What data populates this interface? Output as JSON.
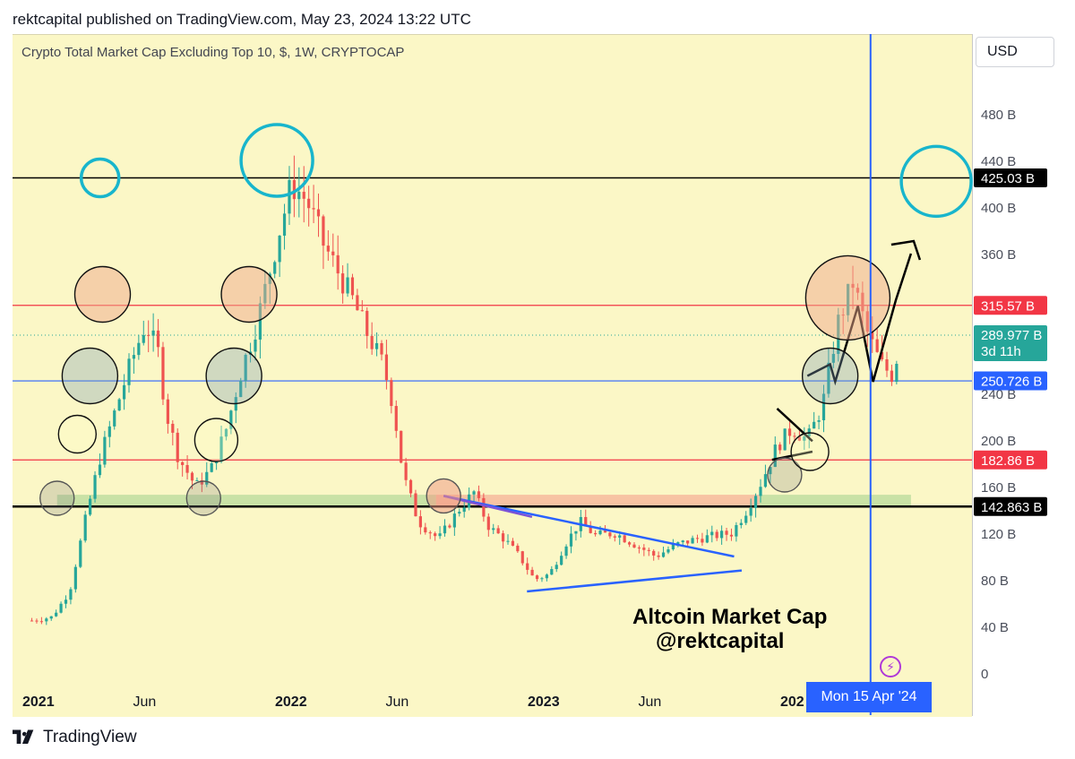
{
  "header": {
    "text": "rektcapital published on TradingView.com, May 23, 2024 13:22 UTC"
  },
  "symbol": "Crypto Total Market Cap Excluding Top 10, $, 1W, CRYPTOCAP",
  "currency": "USD",
  "footer": {
    "brand": "TradingView"
  },
  "annotation": {
    "line1": "Altcoin Market Cap",
    "line2": "@rektcapital"
  },
  "crosshair_date": "Mon 15 Apr '24",
  "chart_data": {
    "type": "candlestick",
    "title": "Crypto Total Market Cap Excluding Top 10, $, 1W, CRYPTOCAP",
    "y_axis": {
      "ticks": [
        {
          "value": 0,
          "label": "0"
        },
        {
          "value": 40,
          "label": "40 B"
        },
        {
          "value": 80,
          "label": "80 B"
        },
        {
          "value": 120,
          "label": "120 B"
        },
        {
          "value": 160,
          "label": "160 B"
        },
        {
          "value": 200,
          "label": "200 B"
        },
        {
          "value": 240,
          "label": "240 B"
        },
        {
          "value": 360,
          "label": "360 B"
        },
        {
          "value": 400,
          "label": "400 B"
        },
        {
          "value": 440,
          "label": "440 B"
        },
        {
          "value": 480,
          "label": "480 B"
        }
      ],
      "range": [
        0,
        520
      ]
    },
    "x_axis": {
      "labels": [
        {
          "text": "2021",
          "t": 2021.0,
          "bold": true
        },
        {
          "text": "Jun",
          "t": 2021.42,
          "bold": false
        },
        {
          "text": "2022",
          "t": 2022.0,
          "bold": true
        },
        {
          "text": "Jun",
          "t": 2022.42,
          "bold": false
        },
        {
          "text": "2023",
          "t": 2023.0,
          "bold": true
        },
        {
          "text": "Jun",
          "t": 2023.42,
          "bold": false
        },
        {
          "text": "202",
          "t": 2024.0,
          "bold": true
        }
      ]
    },
    "price_labels": [
      {
        "value": 425.03,
        "label": "425.03 B",
        "color": "#000000"
      },
      {
        "value": 315.57,
        "label": "315.57 B",
        "color": "#f23645"
      },
      {
        "value": 289.977,
        "label": "289.977 B",
        "sub": "3d 11h",
        "color": "#26a69a"
      },
      {
        "value": 250.726,
        "label": "250.726 B",
        "color": "#2962ff"
      },
      {
        "value": 182.86,
        "label": "182.86 B",
        "color": "#f23645"
      },
      {
        "value": 142.863,
        "label": "142.863 B",
        "color": "#000000"
      }
    ],
    "horizontal_lines": [
      {
        "value": 425.03,
        "color": "#000000"
      },
      {
        "value": 315.57,
        "color": "#f23645"
      },
      {
        "value": 250.726,
        "color": "#2962ff"
      },
      {
        "value": 182.86,
        "color": "#f23645"
      },
      {
        "value": 142.863,
        "color": "#000000"
      }
    ],
    "vertical_line_t": 2024.29,
    "colors": {
      "up": "#26a69a",
      "down": "#ef5350",
      "background": "#fbf7c6"
    },
    "price_path": [
      [
        2020.97,
        45
      ],
      [
        2021.05,
        48
      ],
      [
        2021.12,
        70
      ],
      [
        2021.18,
        130
      ],
      [
        2021.24,
        185
      ],
      [
        2021.3,
        225
      ],
      [
        2021.36,
        265
      ],
      [
        2021.42,
        300
      ],
      [
        2021.47,
        275
      ],
      [
        2021.5,
        225
      ],
      [
        2021.55,
        185
      ],
      [
        2021.62,
        160
      ],
      [
        2021.68,
        175
      ],
      [
        2021.74,
        210
      ],
      [
        2021.8,
        260
      ],
      [
        2021.86,
        300
      ],
      [
        2021.9,
        335
      ],
      [
        2021.95,
        380
      ],
      [
        2022.0,
        420
      ],
      [
        2022.06,
        405
      ],
      [
        2022.12,
        370
      ],
      [
        2022.18,
        345
      ],
      [
        2022.24,
        320
      ],
      [
        2022.3,
        290
      ],
      [
        2022.36,
        265
      ],
      [
        2022.4,
        230
      ],
      [
        2022.44,
        170
      ],
      [
        2022.5,
        130
      ],
      [
        2022.58,
        115
      ],
      [
        2022.66,
        140
      ],
      [
        2022.72,
        155
      ],
      [
        2022.78,
        125
      ],
      [
        2022.84,
        115
      ],
      [
        2022.9,
        100
      ],
      [
        2022.96,
        80
      ],
      [
        2023.02,
        85
      ],
      [
        2023.08,
        110
      ],
      [
        2023.14,
        130
      ],
      [
        2023.2,
        118
      ],
      [
        2023.28,
        120
      ],
      [
        2023.36,
        110
      ],
      [
        2023.44,
        100
      ],
      [
        2023.52,
        110
      ],
      [
        2023.6,
        115
      ],
      [
        2023.68,
        118
      ],
      [
        2023.74,
        120
      ],
      [
        2023.8,
        140
      ],
      [
        2023.86,
        165
      ],
      [
        2023.92,
        195
      ],
      [
        2023.98,
        210
      ],
      [
        2024.04,
        200
      ],
      [
        2024.1,
        230
      ],
      [
        2024.16,
        300
      ],
      [
        2024.22,
        335
      ],
      [
        2024.28,
        290
      ],
      [
        2024.33,
        265
      ],
      [
        2024.38,
        255
      ],
      [
        2024.41,
        290
      ]
    ],
    "annotations": {
      "circles": [
        {
          "t": 2021.07,
          "v": 150,
          "r": 19,
          "fill": "rgba(128,128,128,0.25)",
          "stroke": "#555"
        },
        {
          "t": 2021.15,
          "v": 205,
          "r": 21,
          "fill": "rgba(255,255,200,0.3)",
          "stroke": "#111"
        },
        {
          "t": 2021.2,
          "v": 255,
          "r": 31,
          "fill": "rgba(128,160,180,0.35)",
          "stroke": "#111"
        },
        {
          "t": 2021.25,
          "v": 325,
          "r": 31,
          "fill": "rgba(240,170,140,0.5)",
          "stroke": "#111"
        },
        {
          "t": 2021.24,
          "v": 425,
          "r": 21,
          "fill": "none",
          "stroke": "#18b5cc"
        },
        {
          "t": 2021.65,
          "v": 150,
          "r": 19,
          "fill": "rgba(128,128,128,0.25)",
          "stroke": "#555"
        },
        {
          "t": 2021.7,
          "v": 200,
          "r": 24,
          "fill": "rgba(255,255,200,0.3)",
          "stroke": "#111"
        },
        {
          "t": 2021.77,
          "v": 255,
          "r": 31,
          "fill": "rgba(128,160,180,0.35)",
          "stroke": "#111"
        },
        {
          "t": 2021.83,
          "v": 325,
          "r": 31,
          "fill": "rgba(240,170,140,0.5)",
          "stroke": "#111"
        },
        {
          "t": 2021.94,
          "v": 440,
          "r": 40,
          "fill": "none",
          "stroke": "#18b5cc"
        },
        {
          "t": 2022.6,
          "v": 152,
          "r": 19,
          "fill": "rgba(240,150,130,0.5)",
          "stroke": "#555"
        },
        {
          "t": 2023.95,
          "v": 170,
          "r": 19,
          "fill": "rgba(128,128,128,0.25)",
          "stroke": "#555"
        },
        {
          "t": 2024.05,
          "v": 190,
          "r": 21,
          "fill": "rgba(255,255,200,0.3)",
          "stroke": "#111"
        },
        {
          "t": 2024.13,
          "v": 255,
          "r": 31,
          "fill": "rgba(128,160,180,0.35)",
          "stroke": "#111"
        },
        {
          "t": 2024.2,
          "v": 322,
          "r": 47,
          "fill": "rgba(240,170,140,0.5)",
          "stroke": "#111"
        },
        {
          "t": 2024.55,
          "v": 422,
          "r": 39,
          "fill": "none",
          "stroke": "#18b5cc"
        }
      ],
      "zones": [
        {
          "t1": 2021.07,
          "t2": 2022.57,
          "v1": 143,
          "v2": 153,
          "fill": "rgba(160,210,140,0.55)"
        },
        {
          "t1": 2022.57,
          "t2": 2023.85,
          "v1": 143,
          "v2": 153,
          "fill": "rgba(245,160,140,0.6)"
        },
        {
          "t1": 2023.85,
          "t2": 2024.45,
          "v1": 143,
          "v2": 153,
          "fill": "rgba(160,210,140,0.55)"
        }
      ]
    }
  }
}
